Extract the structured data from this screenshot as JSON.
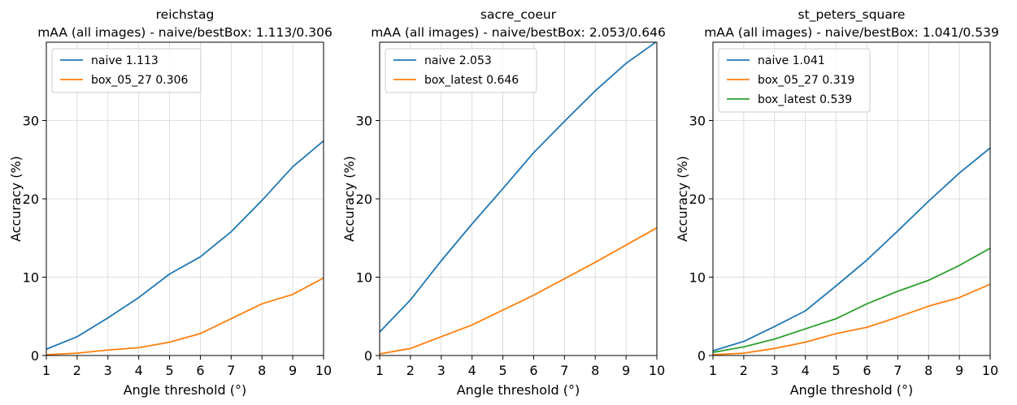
{
  "chart_data": [
    {
      "type": "line",
      "title": "reichstag",
      "subtitle": "mAA (all images) - naive/bestBox: 1.113/0.306",
      "xlabel": "Angle threshold (°)",
      "ylabel": "Accuracy (%)",
      "x": [
        1,
        2,
        3,
        4,
        5,
        6,
        7,
        8,
        9,
        10
      ],
      "xlim": [
        1,
        10
      ],
      "ylim": [
        0,
        40
      ],
      "xticks": [
        1,
        2,
        3,
        4,
        5,
        6,
        7,
        8,
        9,
        10
      ],
      "yticks": [
        0,
        10,
        20,
        30
      ],
      "grid": true,
      "legend_position": "top-left",
      "series": [
        {
          "name": "naive 1.113",
          "color": "#1f77b4",
          "values": [
            0.8,
            2.4,
            4.8,
            7.4,
            10.4,
            12.6,
            15.8,
            19.8,
            24.1,
            27.4
          ]
        },
        {
          "name": "box_05_27 0.306",
          "color": "#ff7f0e",
          "values": [
            0.1,
            0.3,
            0.7,
            1.0,
            1.7,
            2.8,
            4.7,
            6.6,
            7.8,
            9.9
          ]
        }
      ]
    },
    {
      "type": "line",
      "title": "sacre_coeur",
      "subtitle": "mAA (all images) - naive/bestBox: 2.053/0.646",
      "xlabel": "Angle threshold (°)",
      "ylabel": "Accuracy (%)",
      "x": [
        1,
        2,
        3,
        4,
        5,
        6,
        7,
        8,
        9,
        10
      ],
      "xlim": [
        1,
        10
      ],
      "ylim": [
        0,
        40
      ],
      "xticks": [
        1,
        2,
        3,
        4,
        5,
        6,
        7,
        8,
        9,
        10
      ],
      "yticks": [
        0,
        10,
        20,
        30
      ],
      "grid": true,
      "legend_position": "top-left",
      "series": [
        {
          "name": "naive 2.053",
          "color": "#1f77b4",
          "values": [
            3.0,
            7.1,
            12.1,
            16.8,
            21.3,
            25.9,
            29.9,
            33.8,
            37.3,
            40.1
          ]
        },
        {
          "name": "box_latest 0.646",
          "color": "#ff7f0e",
          "values": [
            0.2,
            0.9,
            2.4,
            3.9,
            5.8,
            7.7,
            9.8,
            11.9,
            14.1,
            16.3
          ]
        }
      ]
    },
    {
      "type": "line",
      "title": "st_peters_square",
      "subtitle": "mAA (all images) - naive/bestBox: 1.041/0.539",
      "xlabel": "Angle threshold (°)",
      "ylabel": "Accuracy (%)",
      "x": [
        1,
        2,
        3,
        4,
        5,
        6,
        7,
        8,
        9,
        10
      ],
      "xlim": [
        1,
        10
      ],
      "ylim": [
        0,
        40
      ],
      "xticks": [
        1,
        2,
        3,
        4,
        5,
        6,
        7,
        8,
        9,
        10
      ],
      "yticks": [
        0,
        10,
        20,
        30
      ],
      "grid": true,
      "legend_position": "top-left",
      "series": [
        {
          "name": "naive 1.041",
          "color": "#1f77b4",
          "values": [
            0.6,
            1.8,
            3.7,
            5.7,
            8.9,
            12.2,
            15.9,
            19.7,
            23.3,
            26.5
          ]
        },
        {
          "name": "box_05_27 0.319",
          "color": "#ff7f0e",
          "values": [
            0.1,
            0.3,
            0.9,
            1.7,
            2.8,
            3.6,
            4.9,
            6.3,
            7.4,
            9.1
          ]
        },
        {
          "name": "box_latest 0.539",
          "color": "#2ca02c",
          "values": [
            0.4,
            1.1,
            2.1,
            3.4,
            4.7,
            6.6,
            8.2,
            9.6,
            11.5,
            13.7
          ]
        }
      ]
    }
  ]
}
